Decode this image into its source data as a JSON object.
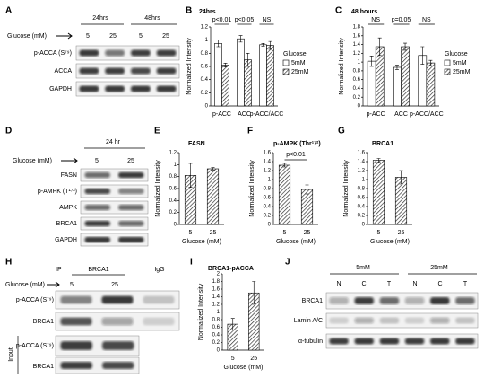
{
  "blots": {
    "A": {
      "letter": "A",
      "groups": [
        "24hrs",
        "48hrs"
      ],
      "lead": "Glucose (mM)",
      "lanes": [
        "5",
        "25",
        "5",
        "25"
      ],
      "rows": [
        "p-ACCA (S⁷⁹)",
        "ACCA",
        "GAPDH"
      ]
    },
    "D": {
      "letter": "D",
      "groups": [
        "24 hr"
      ],
      "lead": "Glucose (mM)",
      "lanes": [
        "5",
        "25"
      ],
      "rows": [
        "FASN",
        "p-AMPK (T¹⁷²)",
        "AMPK",
        "BRCA1",
        "GAPDH"
      ]
    },
    "H": {
      "letter": "H",
      "ip": "IP",
      "groups": [
        "BRCA1",
        "IgG"
      ],
      "lead": "Glucose (mM)",
      "lanes": [
        "5",
        "25"
      ],
      "rows": [
        "p-ACCA (S⁷⁹)",
        "BRCA1"
      ],
      "input": "Input",
      "input_rows": [
        "p-ACCA (S⁷⁹)",
        "BRCA1"
      ]
    },
    "J": {
      "letter": "J",
      "groups": [
        "5mM",
        "25mM"
      ],
      "lanes": [
        "N",
        "C",
        "T",
        "N",
        "C",
        "T"
      ],
      "rows": [
        "BRCA1",
        "Lamin A/C",
        "α-tubulin"
      ]
    }
  },
  "chart_data": [
    {
      "panel": "B",
      "type": "bar",
      "title": "24hrs",
      "y_label": "Normalized Intensity",
      "categories": [
        "p-ACC",
        "ACC",
        "p-ACC/ACC"
      ],
      "series": [
        {
          "name": "5mM",
          "color": "#ffffff",
          "hatch": false,
          "values": [
            0.95,
            1.02,
            0.93
          ],
          "errors": [
            0.05,
            0.05,
            0.02
          ]
        },
        {
          "name": "25mM",
          "color": "#ffffff",
          "hatch": true,
          "values": [
            0.62,
            0.7,
            0.92
          ],
          "errors": [
            0.03,
            0.1,
            0.06
          ]
        }
      ],
      "ylim": [
        0,
        1.2
      ],
      "yticks": [
        0,
        0.2,
        0.4,
        0.6,
        0.8,
        1,
        1.2
      ],
      "annotations": [
        "p<0.01",
        "p<0.05",
        "NS"
      ],
      "legend_title": "Glucose",
      "legend": "right"
    },
    {
      "panel": "C",
      "type": "bar",
      "title": "48 hours",
      "y_label": "Normalized Intensity",
      "categories": [
        "p-ACC",
        "ACC",
        "p-ACC/ACC"
      ],
      "series": [
        {
          "name": "5mM",
          "color": "#ffffff",
          "hatch": false,
          "values": [
            1.02,
            0.88,
            1.15
          ],
          "errors": [
            0.12,
            0.05,
            0.2
          ]
        },
        {
          "name": "25mM",
          "color": "#ffffff",
          "hatch": true,
          "values": [
            1.35,
            1.35,
            0.98
          ],
          "errors": [
            0.2,
            0.08,
            0.06
          ]
        }
      ],
      "ylim": [
        0,
        1.8
      ],
      "yticks": [
        0,
        0.2,
        0.4,
        0.6,
        0.8,
        1,
        1.2,
        1.4,
        1.6,
        1.8
      ],
      "annotations": [
        "NS",
        "p=0.05",
        "NS"
      ],
      "legend_title": "Glucose",
      "legend": "right"
    },
    {
      "panel": "E",
      "type": "bar",
      "title": "FASN",
      "y_label": "Normalized Intensity",
      "x_label": "Glucose (mM)",
      "categories": [
        "5",
        "25"
      ],
      "series": [
        {
          "color": "#ffffff",
          "hatch": true,
          "values": [
            0.82,
            0.93
          ],
          "errors": [
            0.2,
            0.02
          ]
        }
      ],
      "ylim": [
        0,
        1.2
      ],
      "yticks": [
        0,
        0.2,
        0.4,
        0.6,
        0.8,
        1,
        1.2
      ]
    },
    {
      "panel": "F",
      "type": "bar",
      "title": "p-AMPK (Thr¹⁷²)",
      "y_label": "Normalized Intensity",
      "x_label": "Glucose (mM)",
      "categories": [
        "5",
        "25"
      ],
      "series": [
        {
          "color": "#ffffff",
          "hatch": true,
          "values": [
            1.32,
            0.78
          ],
          "errors": [
            0.04,
            0.1
          ]
        }
      ],
      "ylim": [
        0,
        1.6
      ],
      "yticks": [
        0,
        0.2,
        0.4,
        0.6,
        0.8,
        1,
        1.2,
        1.4,
        1.6
      ],
      "annotations": [
        "p<0.01"
      ]
    },
    {
      "panel": "G",
      "type": "bar",
      "title": "BRCA1",
      "y_label": "Normalized Intensity",
      "x_label": "Glucose (mM)",
      "categories": [
        "5",
        "25"
      ],
      "series": [
        {
          "color": "#ffffff",
          "hatch": true,
          "values": [
            1.43,
            1.05
          ],
          "errors": [
            0.04,
            0.15
          ]
        }
      ],
      "ylim": [
        0,
        1.6
      ],
      "yticks": [
        0,
        0.2,
        0.4,
        0.6,
        0.8,
        1,
        1.2,
        1.4,
        1.6
      ]
    },
    {
      "panel": "I",
      "type": "bar",
      "title": "BRCA1-pACCA",
      "y_label": "Normalized Intensity",
      "x_label": "Glucose (mM)",
      "categories": [
        "5",
        "25"
      ],
      "series": [
        {
          "color": "#ffffff",
          "hatch": true,
          "values": [
            0.68,
            1.5
          ],
          "errors": [
            0.15,
            0.3
          ]
        }
      ],
      "ylim": [
        0,
        2
      ],
      "yticks": [
        0,
        0.2,
        0.4,
        0.6,
        0.8,
        1,
        1.2,
        1.4,
        1.6,
        1.8,
        2
      ]
    }
  ]
}
